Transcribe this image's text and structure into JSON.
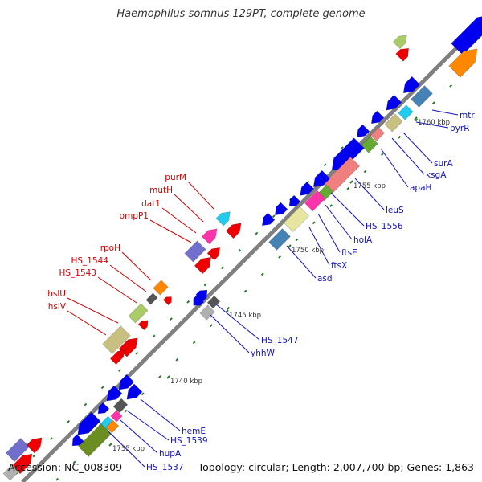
{
  "title": "Haemophilus somnus 129PT, complete genome",
  "footer": {
    "accession": "Accession: NC_008309",
    "summary": "Topology: circular; Length: 2,007,700 bp; Genes: 1,863"
  },
  "colors": {
    "backbone": "#808080",
    "tick": "#2a7a2a",
    "top_strand_labels": "#d00000",
    "bottom_strand_labels": "#1010c0",
    "gene_palette": [
      "#0000ee",
      "#ee0000",
      "#ff8800",
      "#aacc66",
      "#66aa33",
      "#6b8e23",
      "#c8c080",
      "#f08080",
      "#ff33aa",
      "#22ccee",
      "#7070cc",
      "#4682b4",
      "#555555",
      "#b0b0b0",
      "#e6e6a0"
    ]
  },
  "scale_labels": [
    "1735 kbp",
    "1740 kbp",
    "1745 kbp",
    "1750 kbp",
    "1755 kbp",
    "1760 kbp"
  ],
  "gene_labels_top": [
    "purM",
    "mutH",
    "dat1",
    "ompP1",
    "rpoH",
    "HS_1544",
    "HS_1543",
    "hslU",
    "hslV"
  ],
  "gene_labels_bottom": [
    "mtr",
    "pyrR",
    "surA",
    "ksgA",
    "apaH",
    "leuS",
    "HS_1556",
    "holA",
    "ftsE",
    "ftsX",
    "asd",
    "HS_1547",
    "yhhW",
    "hemE",
    "HS_1539",
    "hupA",
    "HS_1537"
  ]
}
